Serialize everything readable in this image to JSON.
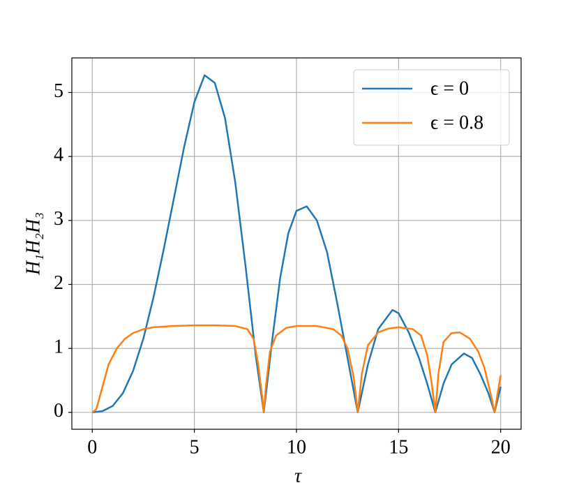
{
  "chart_data": {
    "type": "line",
    "xlabel": "τ",
    "ylabel": "H₁H₂H₃",
    "xlim": [
      -1,
      21
    ],
    "ylim": [
      -0.264,
      5.54
    ],
    "xticks": [
      0,
      5,
      10,
      15,
      20
    ],
    "yticks": [
      0,
      1,
      2,
      3,
      4,
      5
    ],
    "grid": true,
    "legend": "upper right",
    "series": [
      {
        "name": "ϵ = 0",
        "color": "#1f77b4",
        "x": [
          0,
          0.5,
          1,
          1.5,
          2,
          2.5,
          3,
          3.5,
          4,
          4.5,
          5,
          5.5,
          6,
          6.5,
          7,
          7.5,
          8,
          8.4,
          8.8,
          9.2,
          9.6,
          10,
          10.5,
          11,
          11.5,
          12,
          12.5,
          13,
          13.5,
          14,
          14.7,
          15,
          15.5,
          16,
          16.4,
          16.8,
          17.2,
          17.6,
          18.2,
          18.6,
          19,
          19.4,
          19.7,
          20
        ],
        "values": [
          0,
          0.02,
          0.1,
          0.3,
          0.65,
          1.15,
          1.8,
          2.55,
          3.35,
          4.15,
          4.85,
          5.27,
          5.15,
          4.6,
          3.6,
          2.3,
          0.9,
          0,
          1.1,
          2.1,
          2.8,
          3.15,
          3.22,
          3.0,
          2.5,
          1.7,
          0.85,
          0,
          0.75,
          1.3,
          1.6,
          1.55,
          1.25,
          0.85,
          0.45,
          0,
          0.45,
          0.75,
          0.92,
          0.85,
          0.6,
          0.3,
          0,
          0.4
        ]
      },
      {
        "name": "ϵ = 0.8",
        "color": "#ff7f0e",
        "x": [
          0,
          0.2,
          0.5,
          0.8,
          1.2,
          1.6,
          2,
          2.5,
          3,
          4,
          5,
          6,
          7,
          7.6,
          7.9,
          8.1,
          8.3,
          8.4,
          8.5,
          8.7,
          9,
          9.5,
          10,
          11,
          11.8,
          12.2,
          12.5,
          12.8,
          13,
          13.2,
          13.5,
          14,
          14.5,
          15,
          15.7,
          16.1,
          16.4,
          16.6,
          16.8,
          16.95,
          17.2,
          17.6,
          18,
          18.5,
          18.9,
          19.2,
          19.5,
          19.7,
          19.85,
          20
        ],
        "values": [
          0,
          0.05,
          0.4,
          0.75,
          1.0,
          1.15,
          1.24,
          1.3,
          1.33,
          1.35,
          1.36,
          1.36,
          1.35,
          1.3,
          1.15,
          0.8,
          0.3,
          0,
          0.4,
          0.95,
          1.2,
          1.32,
          1.35,
          1.35,
          1.3,
          1.2,
          1.0,
          0.55,
          0,
          0.6,
          1.05,
          1.25,
          1.31,
          1.33,
          1.3,
          1.2,
          0.9,
          0.5,
          0,
          0.6,
          1.1,
          1.24,
          1.25,
          1.15,
          0.95,
          0.7,
          0.3,
          0,
          0.3,
          0.58
        ]
      }
    ]
  }
}
